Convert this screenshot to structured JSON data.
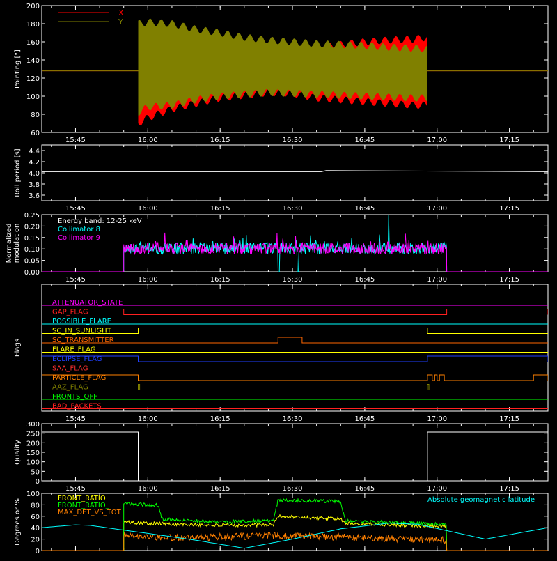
{
  "theme": {
    "background": "#000000",
    "foreground": "#ffffff"
  },
  "time_ticks": [
    "15:45",
    "16:00",
    "16:15",
    "16:30",
    "16:45",
    "17:00",
    "17:15"
  ],
  "chart_data": [
    {
      "id": "pointing",
      "type": "line",
      "ylabel": "Pointing [\"]",
      "x_range": [
        "15:38",
        "17:23"
      ],
      "ylim": [
        60,
        200
      ],
      "y_ticks": [
        "60",
        "80",
        "100",
        "120",
        "140",
        "160",
        "180",
        "200"
      ],
      "legend_position": "top-left",
      "series": [
        {
          "name": "X",
          "color": "#ff0000",
          "flat_value": 128,
          "active_start": "15:58",
          "active_end": "16:58",
          "x": [
            "15:58",
            "16:00",
            "16:05",
            "16:10",
            "16:15",
            "16:20",
            "16:25",
            "16:30",
            "16:35",
            "16:40",
            "16:45",
            "16:50",
            "16:55",
            "16:58"
          ],
          "upper": [
            165,
            150,
            155,
            152,
            148,
            150,
            152,
            152,
            153,
            157,
            160,
            162,
            163,
            165
          ],
          "lower": [
            70,
            76,
            86,
            92,
            98,
            101,
            104,
            103,
            98,
            96,
            94,
            92,
            90,
            90
          ]
        },
        {
          "name": "Y",
          "color": "#808000",
          "flat_value": 128,
          "active_start": "15:58",
          "active_end": "16:58",
          "x": [
            "15:58",
            "16:00",
            "16:05",
            "16:10",
            "16:15",
            "16:20",
            "16:25",
            "16:30",
            "16:35",
            "16:40",
            "16:45",
            "16:50",
            "16:55",
            "16:58"
          ],
          "upper": [
            180,
            182,
            180,
            174,
            170,
            165,
            162,
            160,
            158,
            157,
            156,
            154,
            153,
            152
          ],
          "lower": [
            82,
            88,
            90,
            96,
            100,
            102,
            104,
            103,
            102,
            101,
            100,
            99,
            98,
            98
          ]
        }
      ]
    },
    {
      "id": "roll",
      "type": "line",
      "ylabel": "Roll period [s]",
      "x_range": [
        "15:38",
        "17:23"
      ],
      "ylim": [
        3.5,
        4.5
      ],
      "y_ticks": [
        "3.6",
        "3.8",
        "4.0",
        "4.2",
        "4.4"
      ],
      "series": [
        {
          "name": "",
          "color": "#ffffff",
          "x": [
            "15:38",
            "16:36",
            "16:37",
            "17:23"
          ],
          "y": [
            4.02,
            4.02,
            4.04,
            4.02
          ]
        }
      ]
    },
    {
      "id": "modulation",
      "type": "line",
      "ylabel": "Normalized modulation",
      "x_range": [
        "15:38",
        "17:23"
      ],
      "ylim": [
        0,
        0.25
      ],
      "y_ticks": [
        "0.00",
        "0.05",
        "0.10",
        "0.15",
        "0.20",
        "0.25"
      ],
      "legend_title": "Energy band: 12-25 keV",
      "legend_position": "top-left",
      "series": [
        {
          "name": "Collimator 8",
          "color": "#00ffff",
          "baseline": 0.1,
          "active_start": "15:55",
          "active_end": "17:02",
          "dropouts": [
            [
              "16:27",
              "16:27.3"
            ],
            [
              "16:31",
              "16:31.3"
            ]
          ],
          "spike": [
            "16:50",
            0.25
          ]
        },
        {
          "name": "Collimator 9",
          "color": "#ff00ff",
          "baseline": 0.1,
          "active_start": "15:55",
          "active_end": "17:02"
        }
      ]
    },
    {
      "id": "flags",
      "type": "line",
      "ylabel": "Flags",
      "x_range": [
        "15:38",
        "17:23"
      ],
      "series": [
        {
          "name": "ATTENUATOR_STATE",
          "color": "#ff00ff",
          "low_value": 0,
          "high_intervals": []
        },
        {
          "name": "GAP_FLAG",
          "color": "#ff2020",
          "low_value": 0,
          "high_intervals": [
            [
              "15:38",
              "15:55"
            ],
            [
              "17:02",
              "17:23"
            ]
          ]
        },
        {
          "name": "POSSIBLE_FLARE",
          "color": "#00ffff",
          "low_value": 0,
          "high_intervals": []
        },
        {
          "name": "SC_IN_SUNLIGHT",
          "color": "#ffff00",
          "low_value": 0,
          "high_intervals": [
            [
              "15:58",
              "16:58"
            ]
          ]
        },
        {
          "name": "SC_TRANSMITTER",
          "color": "#ff6600",
          "low_value": 0,
          "high_intervals": [
            [
              "16:27",
              "16:32"
            ]
          ]
        },
        {
          "name": "FLARE_FLAG",
          "color": "#ffff00",
          "low_value": 0,
          "high_intervals": []
        },
        {
          "name": "ECLIPSE_FLAG",
          "color": "#2040ff",
          "low_value": 0,
          "high_intervals": [
            [
              "15:38",
              "15:58"
            ],
            [
              "16:58",
              "17:23"
            ]
          ]
        },
        {
          "name": "SAA_FLAG",
          "color": "#ff3030",
          "low_value": 0,
          "high_intervals": []
        },
        {
          "name": "PARTICLE_FLAG",
          "color": "#ff8000",
          "low_value": 0,
          "high_intervals": [
            [
              "15:38",
              "15:58"
            ],
            [
              "16:58",
              "16:59"
            ],
            [
              "16:59.5",
              "17:00"
            ],
            [
              "17:00.5",
              "17:01.5"
            ],
            [
              "17:20",
              "17:23"
            ]
          ]
        },
        {
          "name": "AAZ_FLAG",
          "color": "#808000",
          "low_value": 0,
          "high_intervals": [
            [
              "15:58",
              "15:58.3"
            ],
            [
              "16:58",
              "16:58.3"
            ]
          ]
        },
        {
          "name": "FRONTS_OFF",
          "color": "#00ff00",
          "low_value": 0,
          "high_intervals": []
        },
        {
          "name": "BAD_PACKETS",
          "color": "#ff2020",
          "low_value": 0,
          "high_intervals": []
        }
      ]
    },
    {
      "id": "quality",
      "type": "line",
      "ylabel": "Quality",
      "x_range": [
        "15:38",
        "17:23"
      ],
      "ylim": [
        0,
        300
      ],
      "y_ticks": [
        "0",
        "50",
        "100",
        "150",
        "200",
        "250",
        "300"
      ],
      "series": [
        {
          "name": "",
          "color": "#ffffff",
          "x": [
            "15:38",
            "15:58",
            "15:58",
            "16:58",
            "16:58",
            "17:23"
          ],
          "y": [
            256,
            256,
            0,
            0,
            256,
            256
          ]
        }
      ]
    },
    {
      "id": "ratios",
      "type": "line",
      "ylabel": "Degrees or %",
      "x_range": [
        "15:38",
        "17:23"
      ],
      "ylim": [
        0,
        100
      ],
      "y_ticks": [
        "0",
        "20",
        "40",
        "60",
        "80",
        "100"
      ],
      "legend_position": "top-left",
      "series": [
        {
          "name": "FRONT_RATIO",
          "color": "#ffff00",
          "active_start": "15:55",
          "active_end": "17:02",
          "x": [
            "15:55",
            "16:00",
            "16:05",
            "16:15",
            "16:26",
            "16:27",
            "16:40",
            "16:41",
            "16:55",
            "17:02"
          ],
          "y": [
            50,
            48,
            46,
            44,
            45,
            60,
            55,
            48,
            44,
            42
          ]
        },
        {
          "name": "FRONT_RATIO_",
          "color": "#00ff00",
          "active_start": "15:55",
          "active_end": "17:02",
          "x": [
            "15:55",
            "16:00",
            "16:02",
            "16:03",
            "16:15",
            "16:26",
            "16:27",
            "16:40",
            "16:41",
            "16:55",
            "17:02"
          ],
          "y": [
            82,
            80,
            80,
            55,
            50,
            52,
            88,
            86,
            52,
            48,
            45
          ]
        },
        {
          "name": "MAX_DET_VS_TOT",
          "color": "#ff8000",
          "active_start": "15:55",
          "active_end": "17:02",
          "x": [
            "15:55",
            "16:05",
            "16:15",
            "16:25",
            "16:35",
            "16:45",
            "16:55",
            "17:02"
          ],
          "y": [
            25,
            22,
            24,
            26,
            25,
            22,
            20,
            18
          ]
        },
        {
          "name": "Absolute geomagnetic latitude",
          "color": "#00ffff",
          "legend_position": "top-right",
          "x": [
            "15:38",
            "15:45",
            "15:48",
            "16:00",
            "16:10",
            "16:20",
            "16:30",
            "16:40",
            "16:50",
            "16:56",
            "17:10",
            "17:23"
          ],
          "y": [
            40,
            45,
            44,
            30,
            18,
            4,
            20,
            38,
            48,
            46,
            20,
            40
          ]
        }
      ]
    }
  ]
}
